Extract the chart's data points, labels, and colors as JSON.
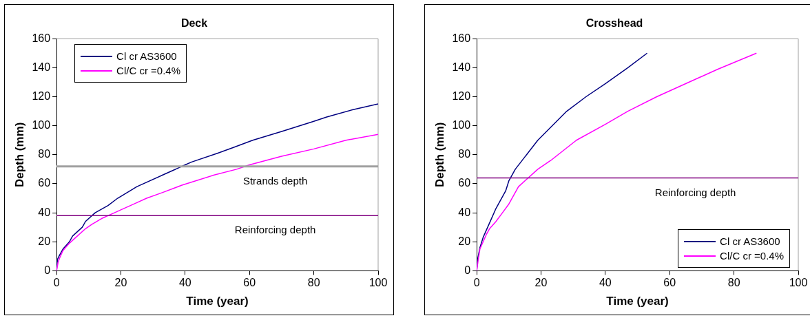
{
  "chart_data": [
    {
      "type": "line",
      "title": "Deck",
      "xlabel": "Time (year)",
      "ylabel": "Depth (mm)",
      "xlim": [
        0,
        100
      ],
      "xticks": [
        0,
        20,
        40,
        60,
        80,
        100
      ],
      "ylim": [
        0,
        160
      ],
      "yticks": [
        0,
        20,
        40,
        60,
        80,
        100,
        120,
        140,
        160
      ],
      "grid": false,
      "legend": "top left",
      "marker": "none",
      "line_style": "solid",
      "series": [
        {
          "name": "Cl cr AS3600",
          "color": "#000080",
          "x": [
            0,
            0.3,
            1,
            2,
            4,
            5,
            8,
            9,
            12,
            16,
            19,
            25,
            33,
            40,
            42,
            50,
            55,
            61,
            70,
            80,
            84,
            92,
            100
          ],
          "values": [
            0,
            8,
            11,
            15,
            20,
            24,
            30,
            34,
            40,
            45,
            50,
            58,
            66,
            73,
            75,
            81,
            85,
            90,
            96,
            103,
            106,
            111,
            115
          ]
        },
        {
          "name": "Cl/C cr =0.4%",
          "color": "#ff00ff",
          "x": [
            0,
            0.5,
            1,
            2,
            4,
            6,
            9,
            11,
            14,
            18,
            20,
            25,
            28,
            33,
            39,
            49,
            56,
            60,
            65,
            70,
            80,
            90,
            100
          ],
          "values": [
            0,
            6,
            9,
            14,
            19,
            23,
            29,
            32,
            36,
            40,
            42,
            47,
            50,
            54,
            59,
            66,
            70,
            73,
            76,
            79,
            84,
            90,
            94
          ]
        }
      ],
      "ref_lines": [
        {
          "axis": "y",
          "value": 72,
          "label": "Strands depth",
          "color": "#a0a0a0"
        },
        {
          "axis": "y",
          "value": 38,
          "label": "Reinforcing depth",
          "color": "#800080"
        }
      ]
    },
    {
      "type": "line",
      "title": "Crosshead",
      "xlabel": "Time (year)",
      "ylabel": "Depth (mm)",
      "xlim": [
        0,
        100
      ],
      "xticks": [
        0,
        20,
        40,
        60,
        80,
        100
      ],
      "ylim": [
        0,
        160
      ],
      "yticks": [
        0,
        20,
        40,
        60,
        80,
        100,
        120,
        140,
        160
      ],
      "grid": false,
      "legend": "bottom right",
      "marker": "none",
      "line_style": "solid",
      "series": [
        {
          "name": "Cl cr AS3600",
          "color": "#000080",
          "x": [
            0,
            0.3,
            1,
            2,
            3,
            4,
            6,
            7,
            9,
            10,
            12,
            19,
            28,
            34,
            40,
            47,
            53
          ],
          "values": [
            0,
            8,
            16,
            23,
            28,
            33,
            43,
            47,
            55,
            62,
            70,
            90,
            110,
            120,
            129,
            140,
            150
          ]
        },
        {
          "name": "Cl/C cr =0.4%",
          "color": "#ff00ff",
          "x": [
            0,
            0.5,
            1,
            2,
            3,
            4,
            6,
            8,
            10,
            13,
            19,
            23,
            31,
            40,
            47,
            56,
            65,
            75,
            87
          ],
          "values": [
            0,
            8,
            15,
            20,
            25,
            29,
            34,
            40,
            46,
            58,
            70,
            76,
            90,
            101,
            110,
            120,
            129,
            139,
            150
          ]
        }
      ],
      "ref_lines": [
        {
          "axis": "y",
          "value": 64,
          "label": "Reinforcing depth",
          "color": "#800080"
        }
      ]
    }
  ]
}
